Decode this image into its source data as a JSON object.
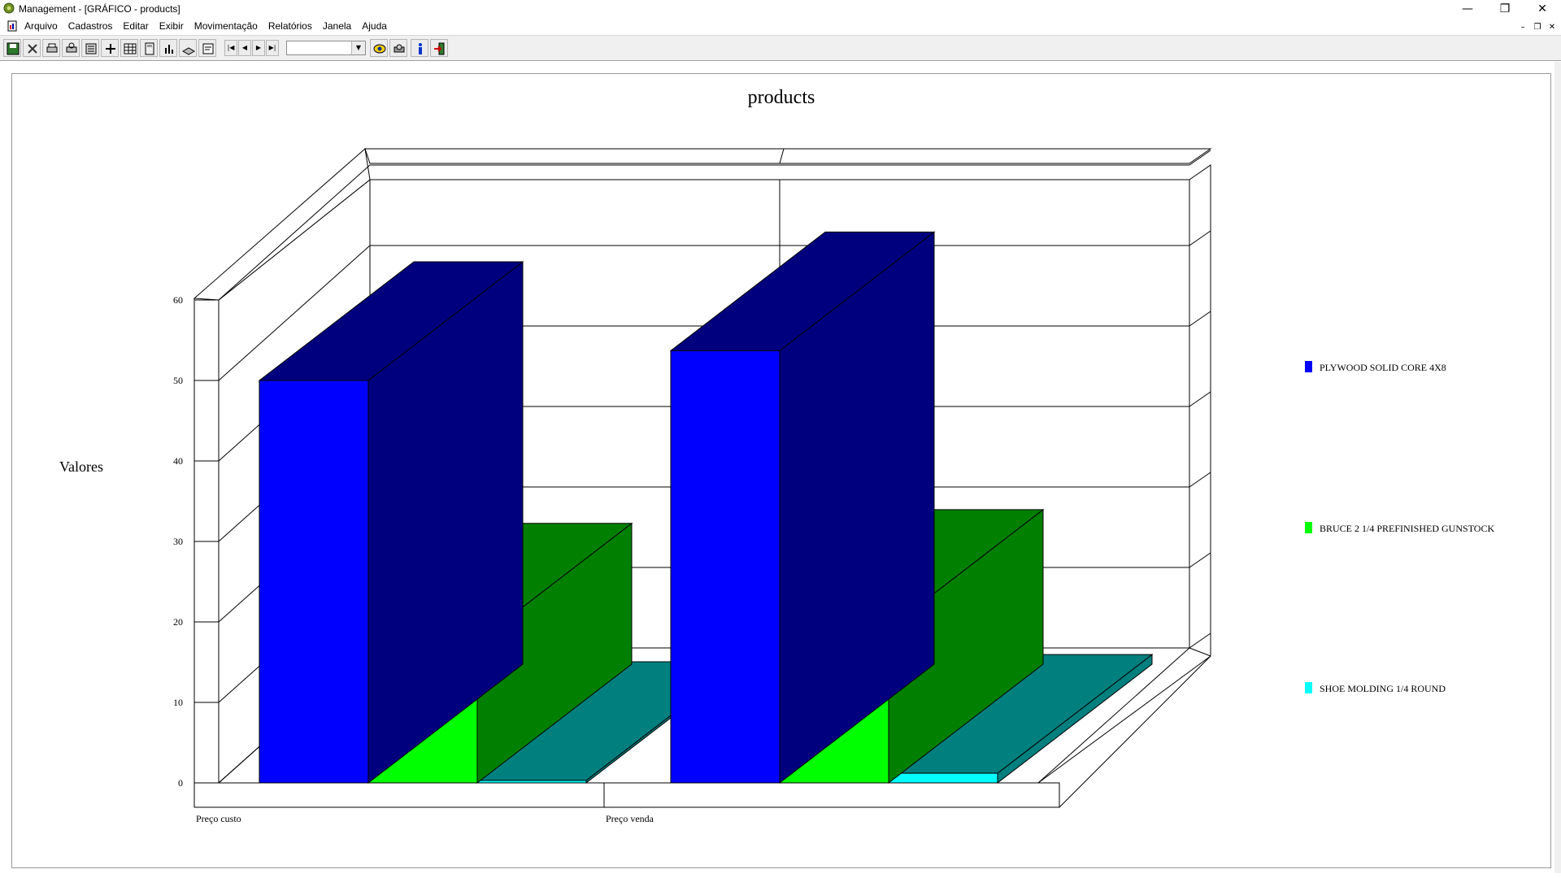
{
  "window": {
    "title": "Management - [GRÁFICO - products]",
    "controls": {
      "minimize": "—",
      "restore": "❐",
      "close": "✕"
    }
  },
  "menu": {
    "items": [
      "Arquivo",
      "Cadastros",
      "Editar",
      "Exibir",
      "Movimentação",
      "Relatórios",
      "Janela",
      "Ajuda"
    ],
    "mdi_controls": {
      "minimize": "–",
      "restore": "❐",
      "close": "✕"
    }
  },
  "toolbar": {
    "buttons": [
      "save-icon",
      "delete-icon",
      "print-icon",
      "print-preview-icon",
      "filter-icon",
      "fields-icon",
      "grid-icon",
      "calculator-icon",
      "chart-icon",
      "book-icon",
      "report-icon",
      "binoculars-icon",
      "printer-setup-icon",
      "info-icon",
      "exit-icon"
    ],
    "nav": {
      "first": "|◀",
      "prev": "◀",
      "next": "▶",
      "last": "▶|"
    },
    "combo_value": "",
    "combo_arrow": "▼"
  },
  "colors": {
    "series": [
      "#0000ff",
      "#00ff00",
      "#00ffff"
    ],
    "series_side": [
      "#00007f",
      "#007f00",
      "#007f7f"
    ]
  },
  "chart_data": {
    "type": "bar",
    "title": "products",
    "ylabel": "Valores",
    "xlabel": "",
    "categories": [
      "Preço custo",
      "Preço venda"
    ],
    "series": [
      {
        "name": "PLYWOOD SOLID CORE 4X8",
        "values": [
          50,
          53.7
        ]
      },
      {
        "name": "BRUCE 2 1/4 PREFINISHED GUNSTOCK",
        "values": [
          17.5,
          19.2
        ]
      },
      {
        "name": "SHOE MOLDING 1/4 ROUND",
        "values": [
          0.3,
          1.2
        ]
      }
    ],
    "ylim": [
      0,
      60
    ],
    "yticks": [
      "0",
      "10",
      "20",
      "30",
      "40",
      "50",
      "60"
    ],
    "grid": true,
    "three_d": true,
    "legend": "right"
  }
}
